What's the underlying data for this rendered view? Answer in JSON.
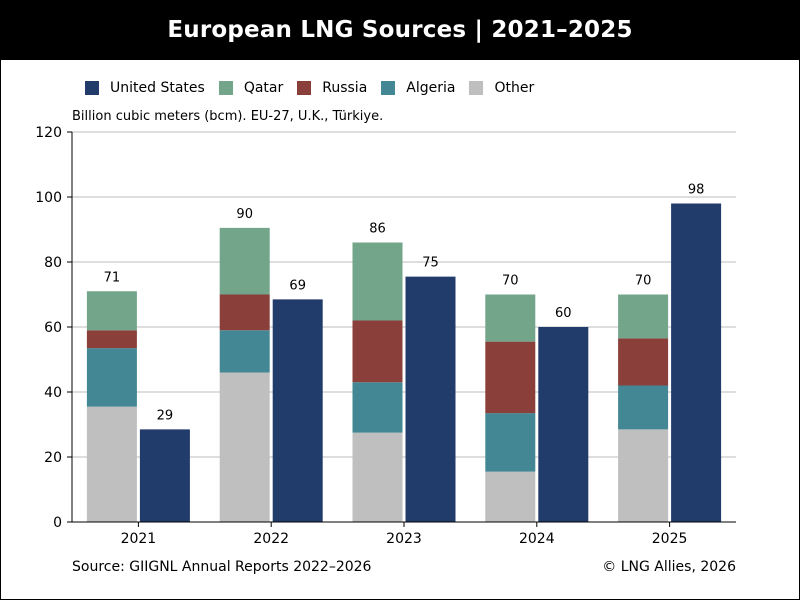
{
  "header": {
    "title": "European LNG Sources | 2021–2025"
  },
  "legend": {
    "items": [
      {
        "label": "United States",
        "color": "#213b6b"
      },
      {
        "label": "Qatar",
        "color": "#73a58a"
      },
      {
        "label": "Russia",
        "color": "#8a3f3a"
      },
      {
        "label": "Algeria",
        "color": "#438795"
      },
      {
        "label": "Other",
        "color": "#bfbfbf"
      }
    ]
  },
  "subtitle": "Billion cubic meters (bcm). EU-27, U.K., Türkiye.",
  "footer": {
    "source": "Source: GIIGNL Annual Reports 2022–2026",
    "copyright": "© LNG Allies, 2026"
  },
  "chart_data": {
    "type": "bar",
    "categories": [
      "2021",
      "2022",
      "2023",
      "2024",
      "2025"
    ],
    "stacked_series": [
      {
        "name": "Other",
        "color": "#bfbfbf",
        "values": [
          35.5,
          46,
          27.5,
          15.5,
          28.5
        ]
      },
      {
        "name": "Algeria",
        "color": "#438795",
        "values": [
          18,
          13,
          15.5,
          18,
          13.5
        ]
      },
      {
        "name": "Russia",
        "color": "#8a3f3a",
        "values": [
          5.5,
          11,
          19,
          22,
          14.5
        ]
      },
      {
        "name": "Qatar",
        "color": "#73a58a",
        "values": [
          12,
          20.5,
          24,
          14.5,
          13.5
        ]
      }
    ],
    "stack_totals": [
      71,
      90,
      86,
      70,
      70
    ],
    "us_series": {
      "name": "United States",
      "color": "#213b6b",
      "values": [
        28.5,
        68.5,
        75.5,
        60,
        98
      ]
    },
    "us_labels": [
      29,
      69,
      75,
      60,
      98
    ],
    "y_ticks": [
      0,
      20,
      40,
      60,
      80,
      100,
      120
    ],
    "ylim": [
      0,
      120
    ],
    "grid": true,
    "legend_position": "top-left"
  }
}
